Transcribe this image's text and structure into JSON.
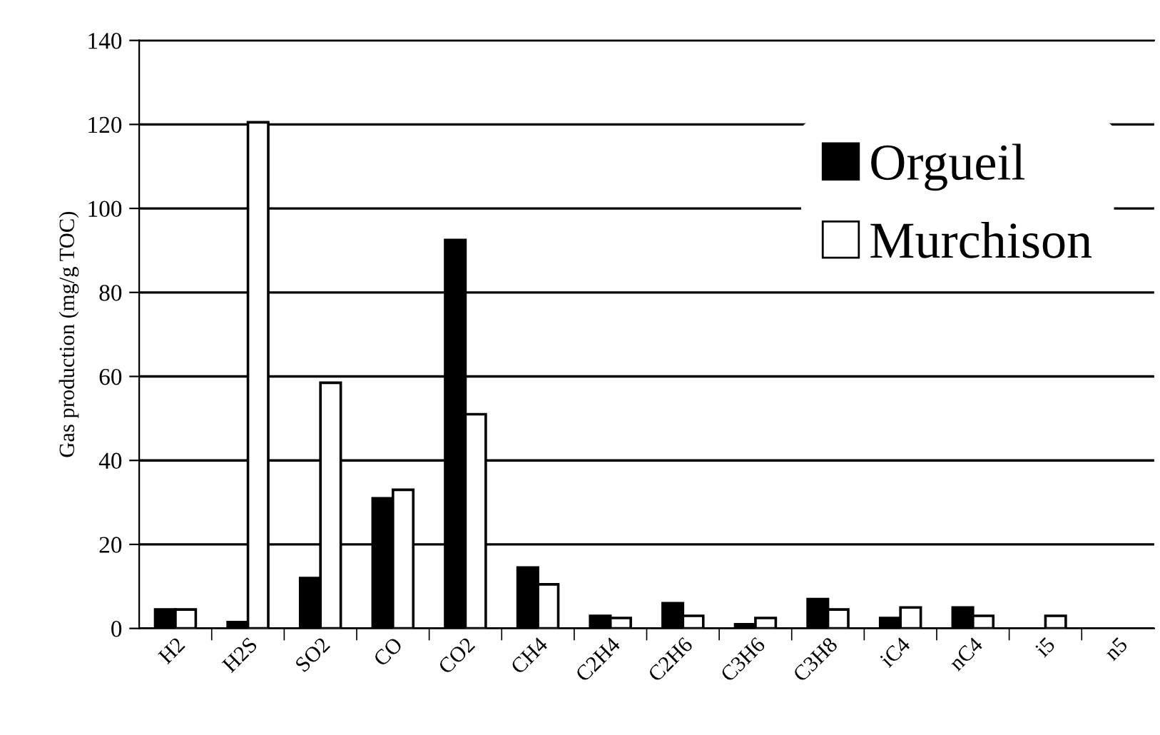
{
  "chart_data": {
    "type": "bar",
    "ylabel": "Gas production (mg/g TOC)",
    "categories": [
      "H2",
      "H2S",
      "SO2",
      "CO",
      "CO2",
      "CH4",
      "C2H4",
      "C2H6",
      "C3H6",
      "C3H8",
      "iC4",
      "nC4",
      "i5",
      "n5"
    ],
    "series": [
      {
        "name": "Orgueil",
        "color": "#000000",
        "values": [
          4.5,
          1.5,
          12,
          31,
          92.5,
          14.5,
          3,
          6,
          1,
          7,
          2.5,
          5,
          null,
          null
        ]
      },
      {
        "name": "Murchison",
        "color": "#ffffff",
        "values": [
          4.5,
          120.5,
          58.5,
          33,
          51,
          10.5,
          2.5,
          3,
          2.5,
          4.5,
          5,
          3,
          3,
          null
        ]
      }
    ],
    "ylim": [
      0,
      140
    ],
    "yticks": [
      0,
      20,
      40,
      60,
      80,
      100,
      120,
      140
    ],
    "grid": "y",
    "legend": "top right"
  }
}
